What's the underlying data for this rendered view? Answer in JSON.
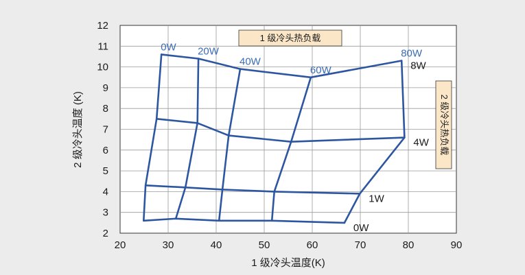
{
  "chart_data": {
    "type": "line",
    "title": "",
    "xlabel": "1 级冷头温度(K)",
    "ylabel": "2 级冷头温度 (K)",
    "xlim": [
      20,
      90
    ],
    "ylim": [
      2,
      12
    ],
    "xticks": [
      "20",
      "30",
      "40",
      "50",
      "60",
      "70",
      "80",
      "90"
    ],
    "yticks": [
      "2",
      "3",
      "4",
      "5",
      "6",
      "7",
      "8",
      "9",
      "10",
      "11",
      "12"
    ],
    "grid": true,
    "legend_stage1": "1 级冷头热负载",
    "legend_stage2": "2 级冷头热负载",
    "stage1_load_series": [
      {
        "name": "0W",
        "points": [
          [
            24.9,
            2.6
          ],
          [
            25.3,
            4.3
          ],
          [
            27.6,
            7.5
          ],
          [
            28.6,
            10.6
          ]
        ]
      },
      {
        "name": "20W",
        "points": [
          [
            31.6,
            2.7
          ],
          [
            33.6,
            4.2
          ],
          [
            36.1,
            7.3
          ],
          [
            36.3,
            10.4
          ]
        ]
      },
      {
        "name": "40W",
        "points": [
          [
            40.6,
            2.6
          ],
          [
            41.3,
            4.1
          ],
          [
            42.6,
            6.7
          ],
          [
            45.0,
            9.9
          ]
        ]
      },
      {
        "name": "60W",
        "points": [
          [
            51.6,
            2.6
          ],
          [
            52.1,
            4.0
          ],
          [
            55.6,
            6.4
          ],
          [
            59.7,
            9.5
          ]
        ]
      },
      {
        "name": "80W",
        "points": [
          [
            66.7,
            2.5
          ],
          [
            69.9,
            3.9
          ],
          [
            79.2,
            6.6
          ],
          [
            78.6,
            10.3
          ]
        ]
      }
    ],
    "stage2_load_series": [
      {
        "name": "0W",
        "points": [
          [
            24.9,
            2.6
          ],
          [
            31.6,
            2.7
          ],
          [
            40.6,
            2.6
          ],
          [
            51.6,
            2.6
          ],
          [
            66.7,
            2.5
          ]
        ]
      },
      {
        "name": "1W",
        "points": [
          [
            25.3,
            4.3
          ],
          [
            33.6,
            4.2
          ],
          [
            41.3,
            4.1
          ],
          [
            52.1,
            4.0
          ],
          [
            69.9,
            3.9
          ]
        ]
      },
      {
        "name": "4W",
        "points": [
          [
            27.6,
            7.5
          ],
          [
            36.1,
            7.3
          ],
          [
            42.6,
            6.7
          ],
          [
            55.6,
            6.4
          ],
          [
            79.2,
            6.6
          ]
        ]
      },
      {
        "name": "8W",
        "points": [
          [
            28.6,
            10.6
          ],
          [
            36.3,
            10.4
          ],
          [
            45.0,
            9.9
          ],
          [
            59.7,
            9.5
          ],
          [
            78.6,
            10.3
          ]
        ]
      }
    ]
  }
}
